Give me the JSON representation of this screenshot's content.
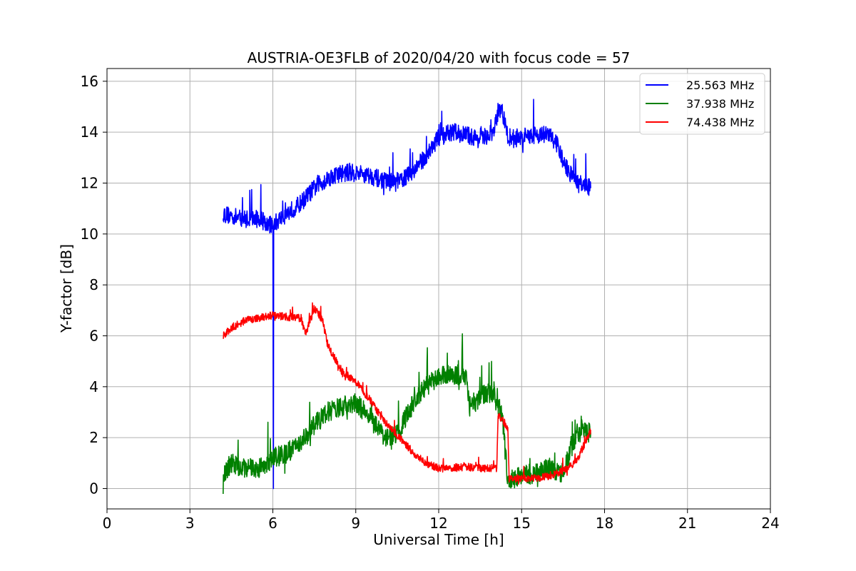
{
  "chart_data": {
    "type": "line",
    "title": "AUSTRIA-OE3FLB of 2020/04/20 with focus code = 57",
    "xlabel": "Universal Time [h]",
    "ylabel": "Y-factor [dB]",
    "xlim": [
      0,
      24
    ],
    "ylim": [
      -0.8,
      16.5
    ],
    "xticks": [
      0,
      3,
      6,
      9,
      12,
      15,
      18,
      21,
      24
    ],
    "yticks": [
      0,
      2,
      4,
      6,
      8,
      10,
      12,
      14,
      16
    ],
    "grid": true,
    "legend_position": "top-right",
    "series": [
      {
        "name": "25.563 MHz",
        "color": "#0000ff",
        "noise": 0.35,
        "x": [
          4.2,
          4.5,
          5.0,
          5.5,
          6.0,
          6.02,
          6.03,
          6.05,
          6.5,
          7.0,
          7.5,
          8.0,
          8.5,
          9.0,
          9.5,
          10.0,
          10.5,
          11.0,
          11.5,
          12.0,
          12.5,
          13.0,
          13.5,
          14.0,
          14.2,
          14.3,
          14.5,
          15.0,
          15.5,
          16.0,
          16.3,
          16.5,
          17.0,
          17.5
        ],
        "y": [
          10.8,
          10.7,
          10.6,
          10.6,
          10.3,
          0.0,
          10.3,
          10.4,
          10.8,
          11.2,
          11.8,
          12.2,
          12.4,
          12.4,
          12.3,
          12.1,
          12.0,
          12.4,
          13.0,
          13.8,
          14.0,
          13.9,
          13.7,
          14.0,
          15.1,
          14.8,
          13.8,
          13.8,
          13.9,
          13.9,
          13.5,
          12.8,
          12.0,
          11.8
        ]
      },
      {
        "name": "37.938 MHz",
        "color": "#008000",
        "noise": 0.4,
        "x": [
          4.2,
          4.5,
          5.0,
          5.5,
          6.0,
          6.5,
          7.0,
          7.5,
          8.0,
          8.5,
          9.0,
          9.5,
          10.0,
          10.5,
          11.0,
          11.5,
          12.0,
          12.5,
          13.0,
          13.1,
          13.5,
          14.0,
          14.3,
          14.5,
          15.0,
          15.5,
          16.0,
          16.5,
          17.0,
          17.5
        ],
        "y": [
          0.6,
          1.0,
          0.8,
          0.8,
          1.2,
          1.4,
          1.8,
          2.5,
          3.0,
          3.2,
          3.4,
          2.8,
          2.0,
          2.2,
          3.2,
          4.0,
          4.4,
          4.5,
          4.4,
          3.2,
          3.6,
          3.8,
          2.8,
          0.3,
          0.5,
          0.6,
          0.8,
          0.6,
          2.2,
          2.2
        ]
      },
      {
        "name": "74.438 MHz",
        "color": "#ff0000",
        "noise": 0.15,
        "x": [
          4.2,
          4.5,
          5.0,
          5.5,
          6.0,
          6.5,
          7.0,
          7.2,
          7.5,
          7.8,
          8.0,
          8.5,
          9.0,
          9.5,
          10.0,
          10.5,
          11.0,
          11.5,
          12.0,
          12.5,
          13.0,
          13.5,
          14.0,
          14.1,
          14.15,
          14.5,
          14.55,
          15.0,
          15.5,
          16.0,
          16.5,
          17.0,
          17.5
        ],
        "y": [
          6.0,
          6.3,
          6.6,
          6.7,
          6.8,
          6.75,
          6.7,
          6.1,
          7.1,
          6.6,
          5.6,
          4.6,
          4.2,
          3.5,
          2.7,
          2.1,
          1.5,
          1.0,
          0.8,
          0.8,
          0.85,
          0.8,
          0.8,
          0.8,
          2.9,
          2.4,
          0.4,
          0.4,
          0.4,
          0.5,
          0.7,
          1.1,
          2.3
        ]
      }
    ]
  }
}
